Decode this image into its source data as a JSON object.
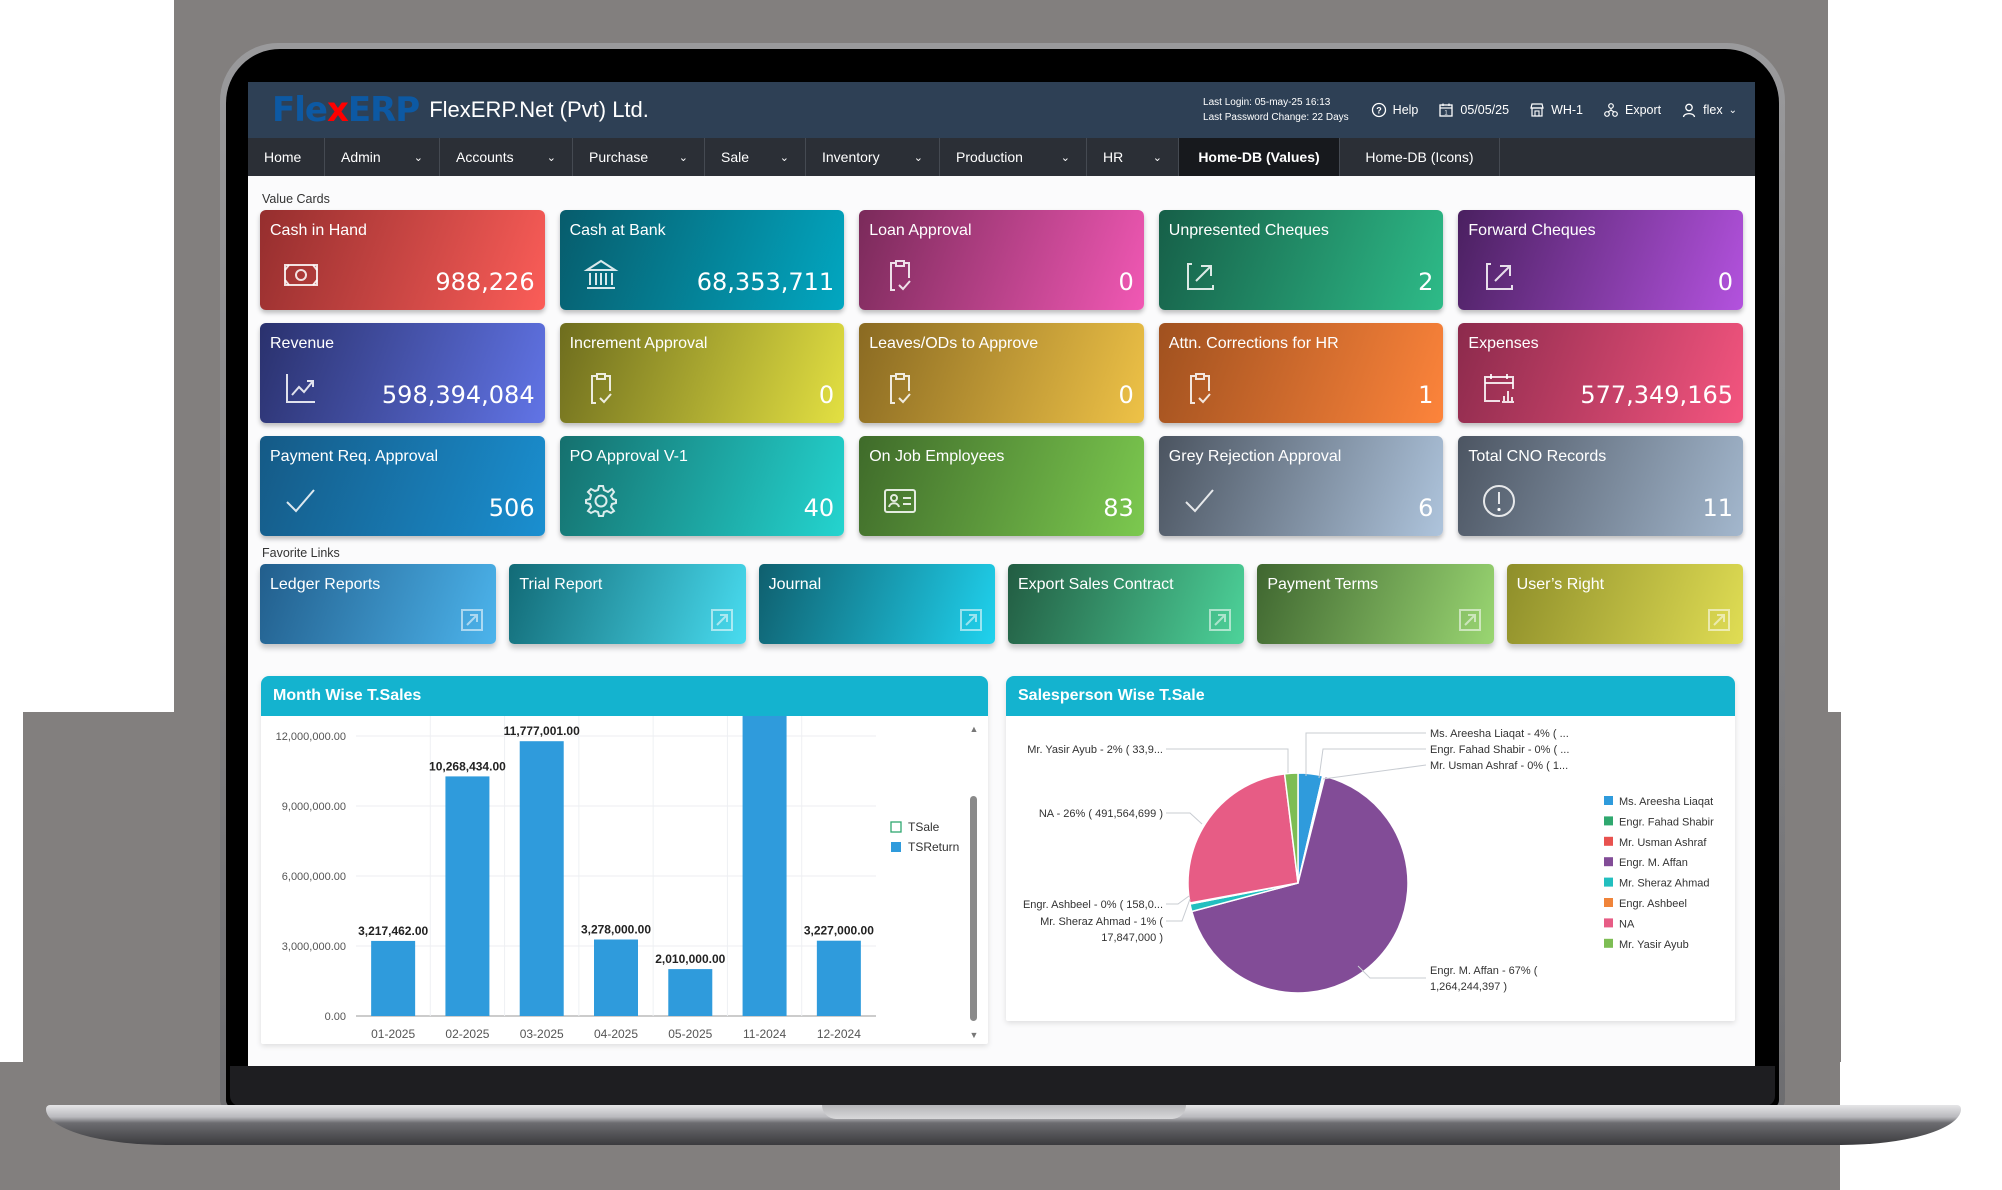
{
  "header": {
    "logo": {
      "part1": "Fle",
      "part2": "x",
      "part3": "ERP"
    },
    "company": "FlexERP.Net (Pvt) Ltd.",
    "last_login": "Last Login: 05-may-25 16:13",
    "last_password_change": "Last Password Change: 22 Days",
    "help": "Help",
    "date": "05/05/25",
    "warehouse": "WH-1",
    "export": "Export",
    "user": "flex"
  },
  "nav": {
    "items": [
      {
        "label": "Home",
        "dropdown": false
      },
      {
        "label": "Admin",
        "dropdown": true
      },
      {
        "label": "Accounts",
        "dropdown": true
      },
      {
        "label": "Purchase",
        "dropdown": true
      },
      {
        "label": "Sale",
        "dropdown": true
      },
      {
        "label": "Inventory",
        "dropdown": true
      },
      {
        "label": "Production",
        "dropdown": true
      },
      {
        "label": "HR",
        "dropdown": true
      },
      {
        "label": "Home-DB (Values)",
        "dropdown": false,
        "active": true
      },
      {
        "label": "Home-DB (Icons)",
        "dropdown": false
      }
    ]
  },
  "value_cards": {
    "label": "Value Cards",
    "cards": [
      {
        "title": "Cash in Hand",
        "value": "988,226",
        "icon": "cash-icon",
        "from": "#952e2e",
        "to": "#fb5d58"
      },
      {
        "title": "Cash at Bank",
        "value": "68,353,711",
        "icon": "bank-icon",
        "from": "#075c6c",
        "to": "#02a7c1"
      },
      {
        "title": "Loan Approval",
        "value": "0",
        "icon": "clipboard-check-icon",
        "from": "#7a2a5a",
        "to": "#f158b4"
      },
      {
        "title": "Unpresented Cheques",
        "value": "2",
        "icon": "external-link-icon",
        "from": "#165f48",
        "to": "#2ebb88"
      },
      {
        "title": "Forward Cheques",
        "value": "0",
        "icon": "external-link-icon",
        "from": "#4a2060",
        "to": "#b352de"
      },
      {
        "title": "Revenue",
        "value": "598,394,084",
        "icon": "trend-chart-icon",
        "from": "#2a316d",
        "to": "#6174e6"
      },
      {
        "title": "Increment Approval",
        "value": "0",
        "icon": "clipboard-check-icon",
        "from": "#6e6d1e",
        "to": "#e3e042"
      },
      {
        "title": "Leaves/ODs to Approve",
        "value": "0",
        "icon": "clipboard-check-icon",
        "from": "#8a6a22",
        "to": "#eec247"
      },
      {
        "title": "Attn. Corrections for HR",
        "value": "1",
        "icon": "clipboard-check-icon",
        "from": "#a0511f",
        "to": "#fd843b"
      },
      {
        "title": "Expenses",
        "value": "577,349,165",
        "icon": "calendar-chart-icon",
        "from": "#8c2a4c",
        "to": "#f4557f"
      },
      {
        "title": "Payment Req. Approval",
        "value": "506",
        "icon": "check-icon",
        "from": "#155a86",
        "to": "#1a8fd0"
      },
      {
        "title": "PO Approval V-1",
        "value": "40",
        "icon": "gear-icon",
        "from": "#15706e",
        "to": "#24d4cf"
      },
      {
        "title": "On Job Employees",
        "value": "83",
        "icon": "id-card-icon",
        "from": "#3f6b2a",
        "to": "#7cc94f"
      },
      {
        "title": "Grey Rejection Approval",
        "value": "6",
        "icon": "check-icon",
        "from": "#4b5460",
        "to": "#aec4dc"
      },
      {
        "title": "Total CNO Records",
        "value": "11",
        "icon": "alert-circle-icon",
        "from": "#4c5562",
        "to": "#a3b7cd"
      }
    ]
  },
  "favorite_links": {
    "label": "Favorite Links",
    "links": [
      {
        "title": "Ledger Reports",
        "from": "#225e8c",
        "to": "#4cb4ec"
      },
      {
        "title": "Trial Report",
        "from": "#126a76",
        "to": "#49dcf0"
      },
      {
        "title": "Journal",
        "from": "#0f5f6e",
        "to": "#20d2ee"
      },
      {
        "title": "Export Sales Contract",
        "from": "#225c42",
        "to": "#4dd39a"
      },
      {
        "title": "Payment Terms",
        "from": "#3f6630",
        "to": "#9ad672"
      },
      {
        "title": "User’s Right",
        "from": "#8e8e2a",
        "to": "#e0dd54"
      }
    ]
  },
  "chart_data": [
    {
      "type": "bar",
      "title": "Month Wise T.Sales",
      "categories": [
        "01-2025",
        "02-2025",
        "03-2025",
        "04-2025",
        "05-2025",
        "11-2024",
        "12-2024"
      ],
      "series": [
        {
          "name": "TSale",
          "color": "#2fa86f",
          "values": [
            0,
            0,
            0,
            0,
            0,
            0,
            0
          ]
        },
        {
          "name": "TSReturn",
          "color": "#2f9bdc",
          "values": [
            3217462.0,
            10268434.0,
            11777001.0,
            3278000.0,
            2010000.0,
            null,
            3227000.0
          ]
        }
      ],
      "data_labels": [
        "3,217,462.00",
        "10,268,434.00",
        "11,777,001.00",
        "3,278,000.00",
        "2,010,000.00",
        "",
        "3,227,000.00"
      ],
      "notes": "11-2024 bar exceeds visible plot area (clipped, unlabeled); estimated > 14,000,000",
      "y_ticks": [
        "0.00",
        "3,000,000.00",
        "6,000,000.00",
        "9,000,000.00",
        "12,000,000.00"
      ],
      "ylim": [
        0,
        14000000
      ],
      "legend_position": "right",
      "grid": true
    },
    {
      "type": "pie",
      "title": "Salesperson Wise T.Sale",
      "slices": [
        {
          "name": "Ms. Areesha Liaqat",
          "percent": 4,
          "color": "#2f9bdc",
          "label": "Ms. Areesha Liaqat - 4% ( ..."
        },
        {
          "name": "Engr. Fahad Shabir",
          "percent": 0,
          "color": "#2fa86f",
          "label": "Engr. Fahad Shabir - 0% ( ..."
        },
        {
          "name": "Mr. Usman Ashraf",
          "percent": 0,
          "color": "#e8524f",
          "label": "Mr. Usman Ashraf - 0% ( 1..."
        },
        {
          "name": "Engr. M. Affan",
          "percent": 67,
          "value": 1264244397,
          "color": "#824c97",
          "label": "Engr. M. Affan - 67% ( 1,264,244,397 )"
        },
        {
          "name": "Mr. Sheraz Ahmad",
          "percent": 1,
          "value": 17847000,
          "color": "#22bfbf",
          "label": "Mr. Sheraz Ahmad - 1% ( 17,847,000 )"
        },
        {
          "name": "Engr. Ashbeel",
          "percent": 0,
          "color": "#f0843a",
          "label": "Engr. Ashbeel - 0% ( 158,0..."
        },
        {
          "name": "NA",
          "percent": 26,
          "value": 491564699,
          "color": "#e75c85",
          "label": "NA - 26% ( 491,564,699 )"
        },
        {
          "name": "Mr. Yasir Ayub",
          "percent": 2,
          "color": "#7dbd54",
          "label": "Mr. Yasir Ayub - 2% ( 33,9..."
        }
      ],
      "legend_position": "right"
    }
  ]
}
